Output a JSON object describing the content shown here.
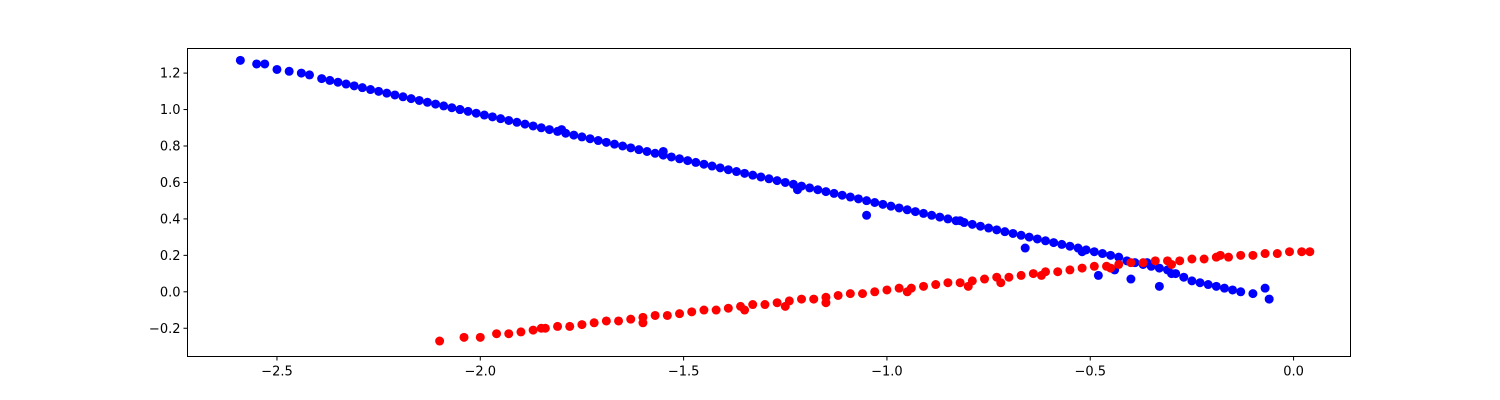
{
  "chart_data": {
    "type": "scatter",
    "title": "",
    "xlabel": "",
    "ylabel": "",
    "xlim": [
      -2.72,
      0.14
    ],
    "ylim": [
      -0.355,
      1.335
    ],
    "x_ticks": [
      -2.5,
      -2.0,
      -1.5,
      -1.0,
      -0.5,
      0.0
    ],
    "x_tick_labels": [
      "−2.5",
      "−2.0",
      "−1.5",
      "−1.0",
      "−0.5",
      "0.0"
    ],
    "y_ticks": [
      -0.2,
      0.0,
      0.2,
      0.4,
      0.6,
      0.8,
      1.0,
      1.2
    ],
    "y_tick_labels": [
      "−0.2",
      "0.0",
      "0.2",
      "0.4",
      "0.6",
      "0.8",
      "1.0",
      "1.2"
    ],
    "grid": false,
    "series": [
      {
        "color": "#0000ff",
        "x": [
          -2.59,
          -2.55,
          -2.53,
          -2.5,
          -2.47,
          -2.44,
          -2.42,
          -2.39,
          -2.37,
          -2.35,
          -2.33,
          -2.31,
          -2.29,
          -2.27,
          -2.25,
          -2.23,
          -2.21,
          -2.19,
          -2.17,
          -2.15,
          -2.13,
          -2.11,
          -2.09,
          -2.07,
          -2.05,
          -2.03,
          -2.01,
          -1.99,
          -1.97,
          -1.95,
          -1.93,
          -1.91,
          -1.89,
          -1.87,
          -1.85,
          -1.83,
          -1.81,
          -1.79,
          -1.77,
          -1.75,
          -1.73,
          -1.71,
          -1.69,
          -1.67,
          -1.65,
          -1.63,
          -1.61,
          -1.59,
          -1.57,
          -1.55,
          -1.53,
          -1.51,
          -1.49,
          -1.47,
          -1.45,
          -1.43,
          -1.41,
          -1.39,
          -1.37,
          -1.35,
          -1.33,
          -1.31,
          -1.29,
          -1.27,
          -1.25,
          -1.23,
          -1.21,
          -1.19,
          -1.17,
          -1.15,
          -1.13,
          -1.11,
          -1.09,
          -1.07,
          -1.05,
          -1.03,
          -1.01,
          -0.99,
          -0.97,
          -0.95,
          -0.93,
          -0.91,
          -0.89,
          -0.87,
          -0.85,
          -0.83,
          -0.81,
          -0.79,
          -0.77,
          -0.75,
          -0.73,
          -0.71,
          -0.69,
          -0.67,
          -0.65,
          -0.63,
          -0.61,
          -0.59,
          -0.57,
          -0.55,
          -0.53,
          -0.51,
          -0.49,
          -0.47,
          -0.45,
          -0.43,
          -0.41,
          -0.39,
          -0.37,
          -0.35,
          -0.33,
          -0.31,
          -0.29,
          -0.27,
          -0.25,
          -0.23,
          -0.21,
          -0.19,
          -0.17,
          -0.15,
          -0.13,
          -0.1,
          -0.07,
          -0.06,
          -1.22,
          -1.05,
          -0.82,
          -0.66,
          -0.52,
          -0.44,
          -0.36,
          -0.33,
          -1.55,
          -1.8,
          -2.05,
          -0.48,
          -0.4,
          -0.3
        ],
        "y": [
          1.27,
          1.25,
          1.25,
          1.22,
          1.21,
          1.2,
          1.19,
          1.17,
          1.16,
          1.15,
          1.14,
          1.13,
          1.12,
          1.11,
          1.1,
          1.09,
          1.08,
          1.07,
          1.06,
          1.05,
          1.04,
          1.03,
          1.02,
          1.01,
          1.0,
          0.99,
          0.98,
          0.97,
          0.96,
          0.95,
          0.94,
          0.93,
          0.92,
          0.91,
          0.9,
          0.89,
          0.88,
          0.87,
          0.86,
          0.85,
          0.84,
          0.83,
          0.82,
          0.81,
          0.8,
          0.79,
          0.78,
          0.77,
          0.76,
          0.75,
          0.74,
          0.73,
          0.72,
          0.71,
          0.7,
          0.69,
          0.68,
          0.67,
          0.66,
          0.65,
          0.64,
          0.63,
          0.62,
          0.61,
          0.6,
          0.59,
          0.58,
          0.57,
          0.56,
          0.55,
          0.54,
          0.53,
          0.52,
          0.51,
          0.5,
          0.49,
          0.48,
          0.47,
          0.46,
          0.45,
          0.44,
          0.43,
          0.42,
          0.41,
          0.4,
          0.39,
          0.38,
          0.37,
          0.36,
          0.35,
          0.34,
          0.33,
          0.32,
          0.31,
          0.3,
          0.29,
          0.28,
          0.27,
          0.26,
          0.25,
          0.24,
          0.23,
          0.22,
          0.21,
          0.2,
          0.19,
          0.17,
          0.16,
          0.15,
          0.14,
          0.13,
          0.12,
          0.1,
          0.08,
          0.06,
          0.05,
          0.04,
          0.03,
          0.02,
          0.01,
          0.0,
          -0.01,
          0.02,
          -0.04,
          0.56,
          0.42,
          0.39,
          0.24,
          0.22,
          0.12,
          0.16,
          0.03,
          0.77,
          0.89,
          1.0,
          0.09,
          0.07,
          0.1
        ]
      },
      {
        "color": "#ff0000",
        "x": [
          -2.1,
          -2.04,
          -2.0,
          -1.96,
          -1.93,
          -1.9,
          -1.87,
          -1.84,
          -1.81,
          -1.78,
          -1.75,
          -1.72,
          -1.69,
          -1.66,
          -1.63,
          -1.6,
          -1.57,
          -1.54,
          -1.51,
          -1.48,
          -1.45,
          -1.42,
          -1.39,
          -1.36,
          -1.33,
          -1.3,
          -1.27,
          -1.24,
          -1.21,
          -1.18,
          -1.15,
          -1.12,
          -1.09,
          -1.06,
          -1.03,
          -1.0,
          -0.97,
          -0.94,
          -0.91,
          -0.88,
          -0.85,
          -0.82,
          -0.79,
          -0.76,
          -0.73,
          -0.7,
          -0.67,
          -0.64,
          -0.61,
          -0.58,
          -0.55,
          -0.52,
          -0.49,
          -0.46,
          -0.43,
          -0.4,
          -0.37,
          -0.34,
          -0.31,
          -0.28,
          -0.25,
          -0.22,
          -0.19,
          -0.16,
          -0.13,
          -0.1,
          -0.07,
          -0.04,
          -0.01,
          0.02,
          0.04,
          -1.6,
          -1.35,
          -1.15,
          -0.95,
          -0.8,
          -0.62,
          -0.45,
          -0.3,
          -0.18,
          -1.85,
          -1.25,
          -0.72
        ],
        "y": [
          -0.27,
          -0.25,
          -0.25,
          -0.23,
          -0.23,
          -0.22,
          -0.21,
          -0.2,
          -0.19,
          -0.19,
          -0.18,
          -0.17,
          -0.16,
          -0.16,
          -0.15,
          -0.14,
          -0.13,
          -0.13,
          -0.12,
          -0.11,
          -0.1,
          -0.1,
          -0.09,
          -0.08,
          -0.07,
          -0.07,
          -0.06,
          -0.05,
          -0.04,
          -0.04,
          -0.03,
          -0.02,
          -0.01,
          -0.01,
          0.0,
          0.01,
          0.02,
          0.02,
          0.03,
          0.04,
          0.05,
          0.05,
          0.06,
          0.07,
          0.08,
          0.08,
          0.09,
          0.1,
          0.11,
          0.11,
          0.12,
          0.13,
          0.14,
          0.14,
          0.15,
          0.16,
          0.16,
          0.17,
          0.17,
          0.17,
          0.18,
          0.18,
          0.19,
          0.19,
          0.2,
          0.2,
          0.21,
          0.21,
          0.22,
          0.22,
          0.22,
          -0.17,
          -0.1,
          -0.06,
          0.0,
          0.03,
          0.09,
          0.13,
          0.15,
          0.2,
          -0.2,
          -0.08,
          0.05
        ]
      }
    ]
  }
}
